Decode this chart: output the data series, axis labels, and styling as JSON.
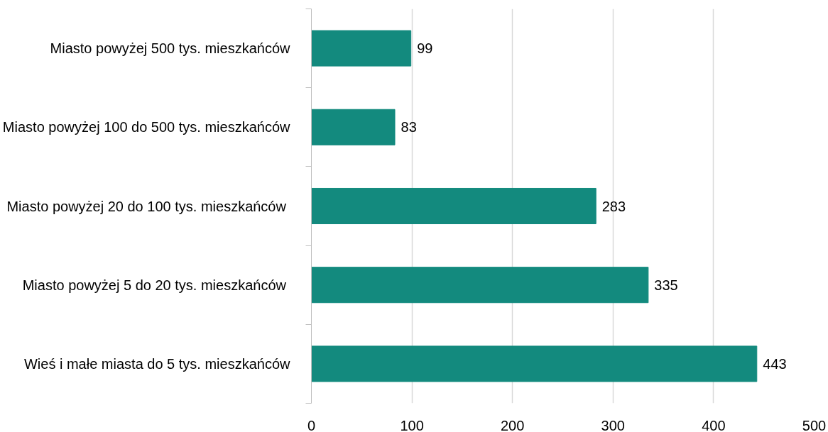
{
  "chart_data": {
    "type": "bar",
    "orientation": "horizontal",
    "categories": [
      "Miasto powyżej 500 tys. mieszkańców",
      "Miasto powyżej 100 do 500 tys. mieszkańców",
      "Miasto powyżej  20 do 100 tys. mieszkańców",
      "Miasto  powyżej 5 do 20 tys. mieszkańców",
      "Wieś i małe miasta do 5 tys. mieszkańców"
    ],
    "values": [
      99,
      83,
      283,
      335,
      443
    ],
    "color": "#138a7e",
    "xlim": [
      0,
      500
    ],
    "xticks": [
      0,
      100,
      200,
      300,
      400,
      500
    ],
    "grid": "x",
    "data_labels": true
  }
}
